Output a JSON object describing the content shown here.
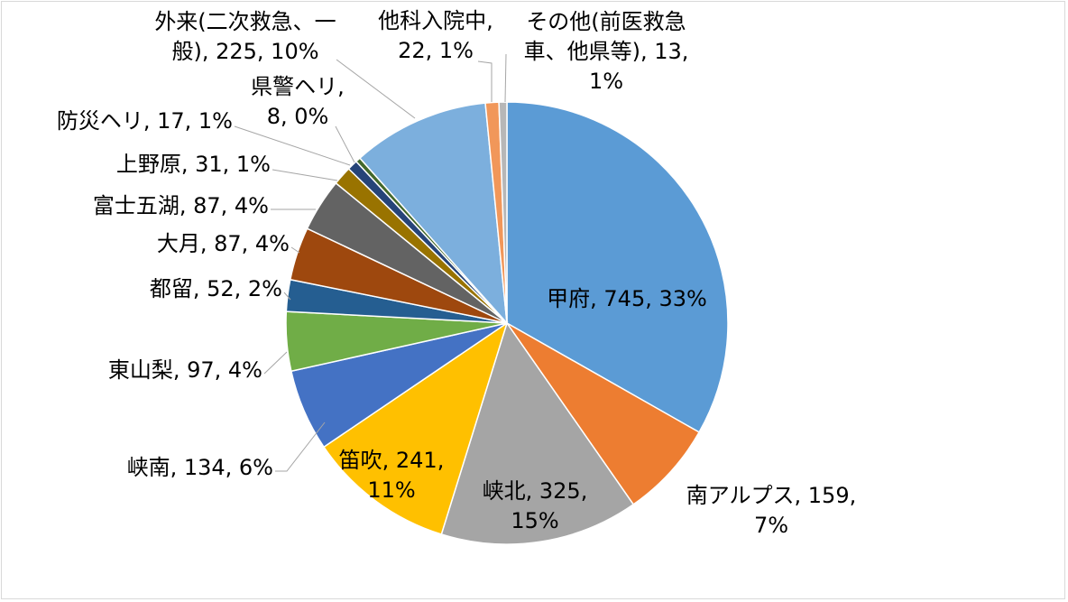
{
  "chart_data": {
    "type": "pie",
    "start_angle_deg": 0,
    "direction": "clockwise",
    "legend": "none",
    "slices": [
      {
        "name": "甲府",
        "value": 745,
        "percent": "33%",
        "color": "#5b9bd5",
        "label_lines": [
          "甲府, 745, 33%"
        ]
      },
      {
        "name": "南アルプス",
        "value": 159,
        "percent": "7%",
        "color": "#ed7d31",
        "label_lines": [
          "南アルプス, 159,",
          "7%"
        ]
      },
      {
        "name": "峡北",
        "value": 325,
        "percent": "15%",
        "color": "#a5a5a5",
        "label_lines": [
          "峡北, 325,",
          "15%"
        ]
      },
      {
        "name": "笛吹",
        "value": 241,
        "percent": "11%",
        "color": "#ffc000",
        "label_lines": [
          "笛吹, 241,",
          "11%"
        ]
      },
      {
        "name": "峡南",
        "value": 134,
        "percent": "6%",
        "color": "#4472c4",
        "label_lines": [
          "峡南, 134, 6%"
        ]
      },
      {
        "name": "東山梨",
        "value": 97,
        "percent": "4%",
        "color": "#70ad47",
        "label_lines": [
          "東山梨, 97, 4%"
        ]
      },
      {
        "name": "都留",
        "value": 52,
        "percent": "2%",
        "color": "#255e91",
        "label_lines": [
          "都留, 52, 2%"
        ]
      },
      {
        "name": "大月",
        "value": 87,
        "percent": "4%",
        "color": "#9e480e",
        "label_lines": [
          "大月, 87, 4%"
        ]
      },
      {
        "name": "富士五湖",
        "value": 87,
        "percent": "4%",
        "color": "#636363",
        "label_lines": [
          "富士五湖, 87, 4%"
        ]
      },
      {
        "name": "上野原",
        "value": 31,
        "percent": "1%",
        "color": "#997300",
        "label_lines": [
          "上野原, 31, 1%"
        ]
      },
      {
        "name": "防災ヘリ",
        "value": 17,
        "percent": "1%",
        "color": "#264478",
        "label_lines": [
          "防災ヘリ, 17, 1%"
        ]
      },
      {
        "name": "県警ヘリ",
        "value": 8,
        "percent": "0%",
        "color": "#43682b",
        "label_lines": [
          "県警ヘリ,",
          "8, 0%"
        ]
      },
      {
        "name": "外来(二次救急、一般)",
        "value": 225,
        "percent": "10%",
        "color": "#7cafdd",
        "label_lines": [
          "外来(二次救急、一",
          "般), 225, 10%"
        ]
      },
      {
        "name": "他科入院中",
        "value": 22,
        "percent": "1%",
        "color": "#f1975a",
        "label_lines": [
          "他科入院中,",
          "22, 1%"
        ]
      },
      {
        "name": "その他(前医救急車、他県等)",
        "value": 13,
        "percent": "1%",
        "color": "#b7b7b7",
        "label_lines": [
          "その他(前医救急",
          "車、他県等), 13,",
          "1%"
        ]
      }
    ]
  }
}
